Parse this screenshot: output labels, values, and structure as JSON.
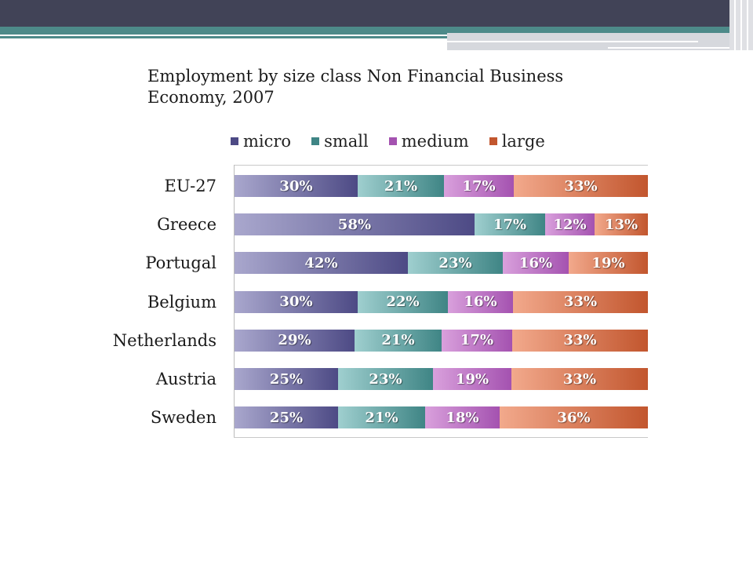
{
  "slide": {
    "title_line1": "Employment by size class Non Financial Business",
    "title_line2": "Economy, 2007"
  },
  "colors": {
    "micro_light": "#a9a7cd",
    "micro_dark": "#4d4a85",
    "small_light": "#9fcfcf",
    "small_dark": "#3f8585",
    "medium_light": "#d9a0dc",
    "medium_dark": "#a452b0",
    "large_light": "#f2a98c",
    "large_dark": "#c2562e"
  },
  "chart_data": {
    "type": "bar",
    "orientation": "horizontal",
    "stacked": "100%",
    "title": "Employment by size class Non Financial Business Economy, 2007",
    "legend_position": "top",
    "categories": [
      "EU-27",
      "Greece",
      "Portugal",
      "Belgium",
      "Netherlands",
      "Austria",
      "Sweden"
    ],
    "series": [
      {
        "name": "micro",
        "values": [
          30,
          58,
          42,
          30,
          29,
          25,
          25
        ]
      },
      {
        "name": "small",
        "values": [
          21,
          17,
          23,
          22,
          21,
          23,
          21
        ]
      },
      {
        "name": "medium",
        "values": [
          17,
          12,
          16,
          16,
          17,
          19,
          18
        ]
      },
      {
        "name": "large",
        "values": [
          33,
          13,
          19,
          33,
          33,
          33,
          36
        ]
      }
    ],
    "labels": [
      [
        "30%",
        "21%",
        "17%",
        "33%"
      ],
      [
        "58%",
        "17%",
        "12%",
        "13%"
      ],
      [
        "42%",
        "23%",
        "16%",
        "19%"
      ],
      [
        "30%",
        "22%",
        "16%",
        "33%"
      ],
      [
        "29%",
        "21%",
        "17%",
        "33%"
      ],
      [
        "25%",
        "23%",
        "19%",
        "33%"
      ],
      [
        "25%",
        "21%",
        "18%",
        "36%"
      ]
    ]
  }
}
